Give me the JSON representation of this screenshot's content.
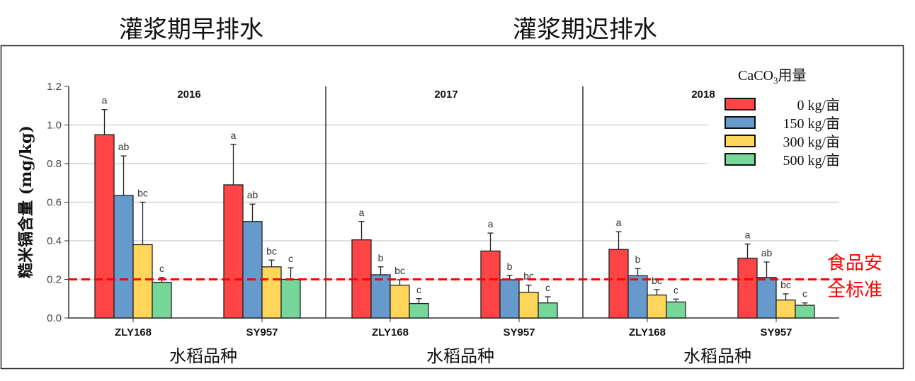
{
  "titles": {
    "left": "灌浆期早排水",
    "right": "灌浆期迟排水"
  },
  "chart_data": {
    "type": "bar",
    "ylabel": "糙米镉含量 (mg/kg)",
    "xlabel": "水稻品种",
    "ylim": [
      0,
      1.2
    ],
    "yticks": [
      "0.0",
      "0.2",
      "0.4",
      "0.6",
      "0.8",
      "1.0",
      "1.2"
    ],
    "grid": true,
    "legend": {
      "title": "CaCO",
      "title_sub": "3",
      "title_suffix": "用量",
      "placement": "top-right"
    },
    "series_names": [
      "0 kg/亩",
      "150 kg/亩",
      "300 kg/亩",
      "500 kg/亩"
    ],
    "colors": [
      "#fe4444",
      "#6699cc",
      "#ffd55a",
      "#77d69a"
    ],
    "reference_line": {
      "value": 0.2,
      "label_line1": "食品安",
      "label_line2": "全标准",
      "color": "#ff0000"
    },
    "panels": [
      {
        "title": "2016",
        "groups": [
          {
            "category": "ZLY168",
            "values": [
              0.95,
              0.635,
              0.38,
              0.185
            ],
            "error_top": [
              1.08,
              0.84,
              0.6,
              0.21
            ],
            "letters": [
              "a",
              "ab",
              "bc",
              "c"
            ]
          },
          {
            "category": "SY957",
            "values": [
              0.69,
              0.5,
              0.265,
              0.2
            ],
            "error_top": [
              0.9,
              0.59,
              0.3,
              0.26
            ],
            "letters": [
              "a",
              "ab",
              "bc",
              "c"
            ]
          }
        ]
      },
      {
        "title": "2017",
        "groups": [
          {
            "category": "ZLY168",
            "values": [
              0.405,
              0.224,
              0.17,
              0.075
            ],
            "error_top": [
              0.5,
              0.265,
              0.198,
              0.1
            ],
            "letters": [
              "a",
              "b",
              "bc",
              "c"
            ]
          },
          {
            "category": "SY957",
            "values": [
              0.347,
              0.198,
              0.133,
              0.078
            ],
            "error_top": [
              0.44,
              0.22,
              0.17,
              0.11
            ],
            "letters": [
              "a",
              "b",
              "bc",
              "c"
            ]
          }
        ]
      },
      {
        "title": "2018",
        "groups": [
          {
            "category": "ZLY168",
            "values": [
              0.355,
              0.219,
              0.119,
              0.083
            ],
            "error_top": [
              0.447,
              0.256,
              0.147,
              0.098
            ],
            "letters": [
              "a",
              "b",
              "bc",
              "c"
            ]
          },
          {
            "category": "SY957",
            "values": [
              0.31,
              0.21,
              0.093,
              0.066
            ],
            "error_top": [
              0.383,
              0.29,
              0.125,
              0.078
            ],
            "letters": [
              "a",
              "ab",
              "bc",
              "c"
            ]
          }
        ]
      }
    ]
  }
}
